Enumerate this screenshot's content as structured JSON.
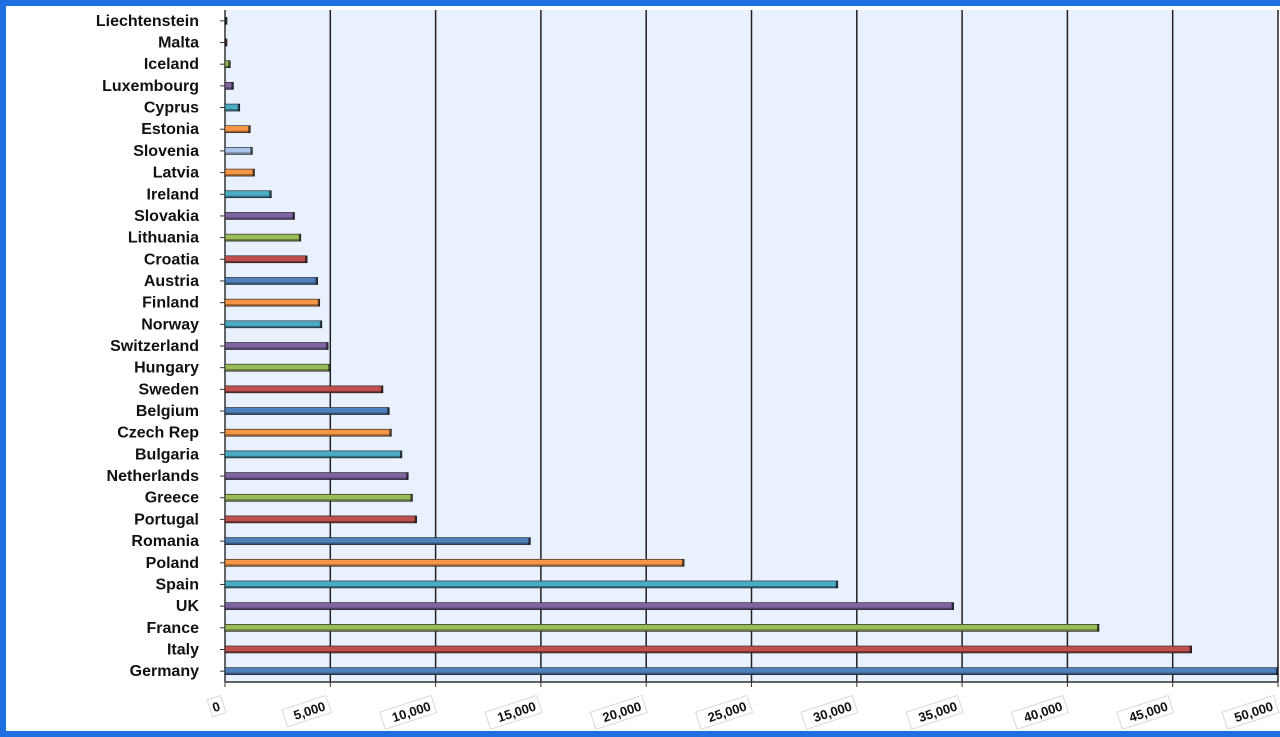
{
  "chart_data": {
    "type": "bar",
    "orientation": "horizontal",
    "title": "",
    "xlabel": "",
    "ylabel": "",
    "xlim": [
      0,
      50000
    ],
    "grid": true,
    "legend": "none",
    "categories": [
      "Liechtenstein",
      "Malta",
      "Iceland",
      "Luxembourg",
      "Cyprus",
      "Estonia",
      "Slovenia",
      "Latvia",
      "Ireland",
      "Slovakia",
      "Lithuania",
      "Croatia",
      "Austria",
      "Finland",
      "Norway",
      "Switzerland",
      "Hungary",
      "Sweden",
      "Belgium",
      "Czech Rep",
      "Bulgaria",
      "Netherlands",
      "Greece",
      "Portugal",
      "Romania",
      "Poland",
      "Spain",
      "UK",
      "France",
      "Italy",
      "Germany"
    ],
    "values": [
      20,
      80,
      250,
      400,
      700,
      1200,
      1300,
      1400,
      2200,
      3300,
      3600,
      3900,
      4400,
      4500,
      4600,
      4900,
      5000,
      7500,
      7800,
      7900,
      8400,
      8700,
      8900,
      9100,
      14500,
      21800,
      29100,
      34600,
      41500,
      45900,
      50000
    ],
    "tick_labels": [
      "0",
      "5,000",
      "10,000",
      "15,000",
      "20,000",
      "25,000",
      "30,000",
      "35,000",
      "40,000",
      "45,000",
      "50,000"
    ],
    "tick_values": [
      0,
      5000,
      10000,
      15000,
      20000,
      25000,
      30000,
      35000,
      40000,
      45000,
      50000
    ],
    "bar_colors": [
      "#4f81bd",
      "#c0504d",
      "#9bbb59",
      "#8064a2",
      "#4bacc6",
      "#f79646",
      "#a9c4e8",
      "#f79646",
      "#4bacc6",
      "#8064a2",
      "#9bbb59",
      "#c0504d",
      "#4f81bd",
      "#f79646",
      "#4bacc6",
      "#8064a2",
      "#9bbb59",
      "#c0504d",
      "#4f81bd",
      "#f79646",
      "#4bacc6",
      "#8064a2",
      "#9bbb59",
      "#c0504d",
      "#4f81bd",
      "#f79646",
      "#4bacc6",
      "#8064a2",
      "#9bbb59",
      "#c0504d",
      "#4f81bd"
    ],
    "plot_background": "#e8f1fd",
    "grid_color": "#222222",
    "frame_color": "#1f6fe0"
  }
}
